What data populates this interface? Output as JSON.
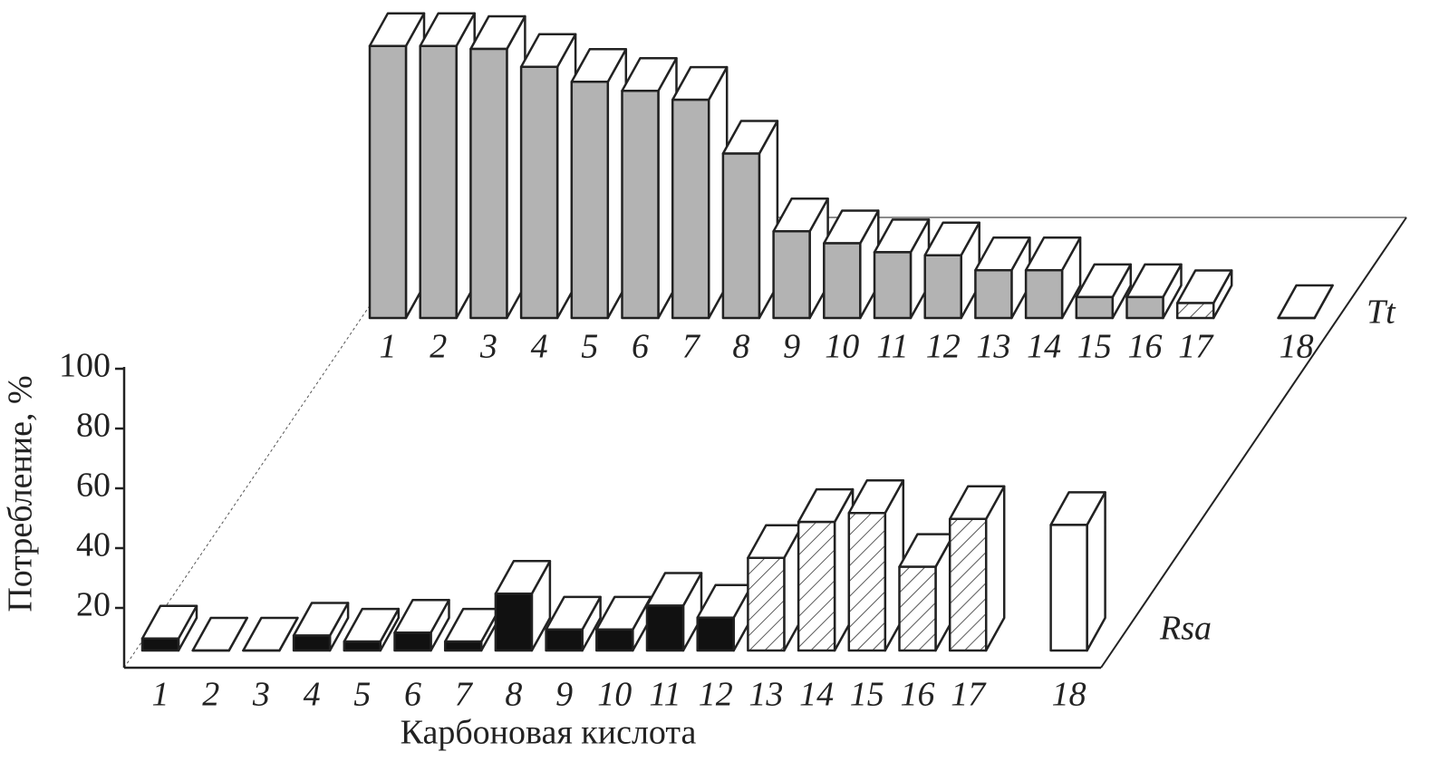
{
  "chart_data": {
    "type": "bar3d",
    "categories": [
      "1",
      "2",
      "3",
      "4",
      "5",
      "6",
      "7",
      "8",
      "9",
      "10",
      "11",
      "12",
      "13",
      "14",
      "15",
      "16",
      "17",
      "18"
    ],
    "series": [
      {
        "name": "Tt",
        "values": [
          91,
          91,
          90,
          84,
          79,
          76,
          73,
          55,
          29,
          25,
          22,
          21,
          16,
          16,
          7,
          7,
          5,
          0
        ],
        "fills": [
          "#b3b3b3",
          "#b3b3b3",
          "#b3b3b3",
          "#b3b3b3",
          "#b3b3b3",
          "#b3b3b3",
          "#b3b3b3",
          "#b3b3b3",
          "#b3b3b3",
          "#b3b3b3",
          "#b3b3b3",
          "#b3b3b3",
          "#b3b3b3",
          "#b3b3b3",
          "#b3b3b3",
          "#b3b3b3",
          "hatch",
          "#ffffff"
        ]
      },
      {
        "name": "Rsa",
        "values": [
          4,
          0,
          0,
          5,
          3,
          6,
          3,
          19,
          7,
          7,
          15,
          11,
          31,
          43,
          46,
          28,
          44,
          42
        ],
        "fills": [
          "#111111",
          "#ffffff",
          "#ffffff",
          "#111111",
          "#111111",
          "#111111",
          "#111111",
          "#111111",
          "#111111",
          "#111111",
          "#111111",
          "#111111",
          "hatch",
          "hatch",
          "hatch",
          "hatch",
          "hatch",
          "#ffffff"
        ]
      }
    ],
    "ylabel": "Потребление, %",
    "xlabel": "Карбоновая кислота",
    "ylim": [
      0,
      100
    ],
    "yticks": [
      20,
      40,
      60,
      80,
      100
    ]
  }
}
